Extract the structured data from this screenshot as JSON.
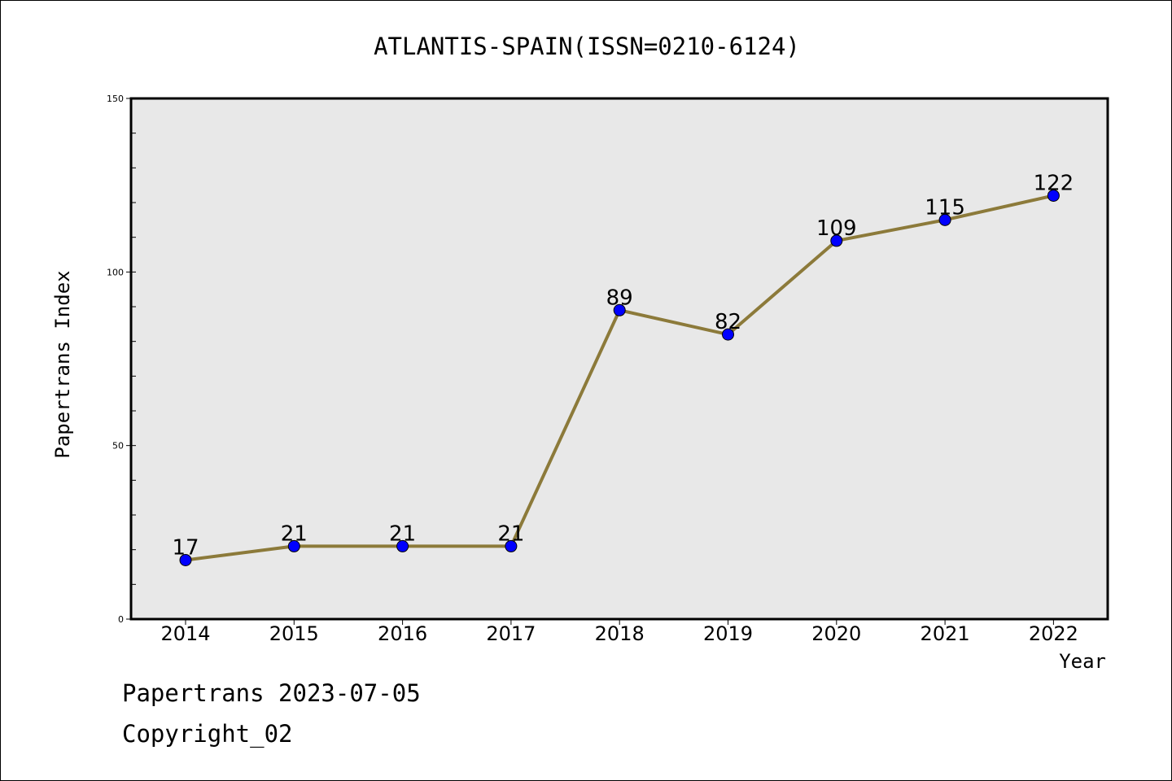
{
  "chart_data": {
    "type": "line",
    "title": "ATLANTIS-SPAIN(ISSN=0210-6124)",
    "xlabel": "Year",
    "ylabel": "Papertrans Index",
    "categories": [
      "2014",
      "2015",
      "2016",
      "2017",
      "2018",
      "2019",
      "2020",
      "2021",
      "2022"
    ],
    "series": [
      {
        "values": [
          17,
          21,
          21,
          21,
          89,
          82,
          109,
          115,
          122
        ]
      }
    ],
    "ylim": [
      0,
      150
    ],
    "y_ticks": [
      0,
      50,
      100,
      150
    ],
    "y_tick_labels": [
      "0",
      "50",
      "100",
      "150"
    ],
    "y_minor_step": 10,
    "grid": false,
    "colors": {
      "line": "#8c7a3a",
      "marker": "#0000ff",
      "plot_background": "#e8e8e8"
    }
  },
  "footer": {
    "date_line": "Papertrans 2023-07-05",
    "copyright_line": "Copyright_02"
  }
}
